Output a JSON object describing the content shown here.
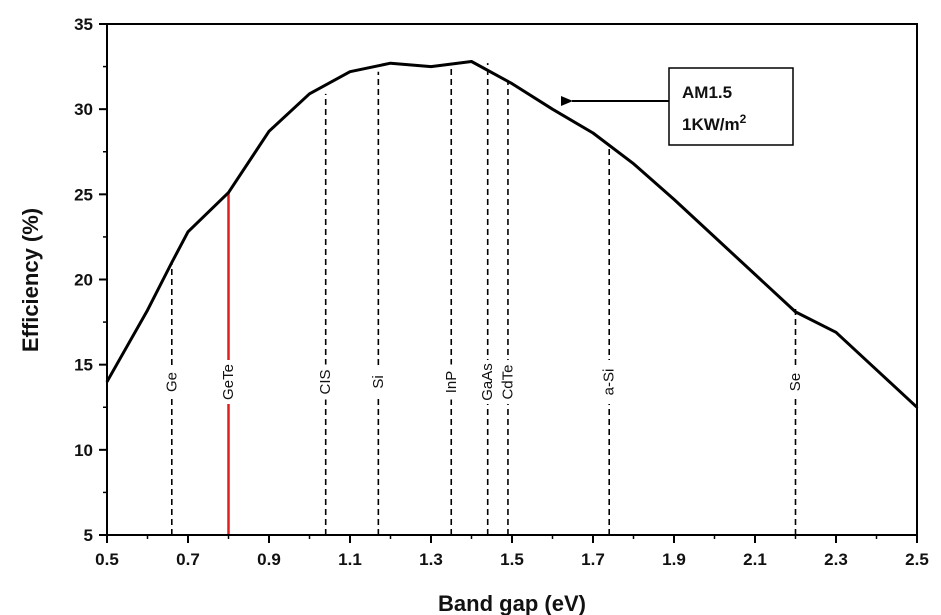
{
  "chart_data": {
    "type": "line",
    "xlabel": "Band gap (eV)",
    "ylabel": "Efficiency (%)",
    "xlim": [
      0.5,
      2.5
    ],
    "ylim": [
      5,
      35
    ],
    "xticks": [
      "0.5",
      "0.7",
      "0.9",
      "1.1",
      "1.3",
      "1.5",
      "1.7",
      "1.9",
      "2.1",
      "2.3",
      "2.5"
    ],
    "yticks": [
      "5",
      "10",
      "15",
      "20",
      "25",
      "30",
      "35"
    ],
    "grid": false,
    "series": [
      {
        "x": [
          0.5,
          0.6,
          0.66,
          0.7,
          0.8,
          0.9,
          1.0,
          1.1,
          1.2,
          1.3,
          1.4,
          1.5,
          1.6,
          1.7,
          1.8,
          1.9,
          2.0,
          2.1,
          2.2,
          2.3,
          2.4,
          2.5
        ],
        "values": [
          14.0,
          18.2,
          21.0,
          22.8,
          25.1,
          28.7,
          30.9,
          32.2,
          32.7,
          32.5,
          32.8,
          31.5,
          30.0,
          28.6,
          26.8,
          24.7,
          22.5,
          20.3,
          18.1,
          16.9,
          14.7,
          12.5
        ],
        "color": "#000000"
      }
    ],
    "markers": [
      {
        "label": "Ge",
        "x": 0.66,
        "y": 21.0,
        "style": "dashed",
        "color": "#000000"
      },
      {
        "label": "GeTe",
        "x": 0.8,
        "y": 25.1,
        "style": "solid",
        "color": "#e01f1f"
      },
      {
        "label": "CIS",
        "x": 1.04,
        "y": 30.9,
        "style": "dashed",
        "color": "#000000"
      },
      {
        "label": "Si",
        "x": 1.17,
        "y": 32.2,
        "style": "dashed",
        "color": "#000000"
      },
      {
        "label": "InP",
        "x": 1.35,
        "y": 32.5,
        "style": "dashed",
        "color": "#000000"
      },
      {
        "label": "GaAs",
        "x": 1.44,
        "y": 32.7,
        "style": "dashed",
        "color": "#000000"
      },
      {
        "label": "CdTe",
        "x": 1.49,
        "y": 31.6,
        "style": "dashed",
        "color": "#000000"
      },
      {
        "label": "a-Si",
        "x": 1.74,
        "y": 27.9,
        "style": "dashed",
        "color": "#000000"
      },
      {
        "label": "Se",
        "x": 2.2,
        "y": 18.5,
        "style": "dashed",
        "color": "#000000"
      }
    ],
    "annotation": {
      "line1": "AM1.5",
      "line2_main": "1KW/m",
      "line2_sup": "2"
    }
  }
}
